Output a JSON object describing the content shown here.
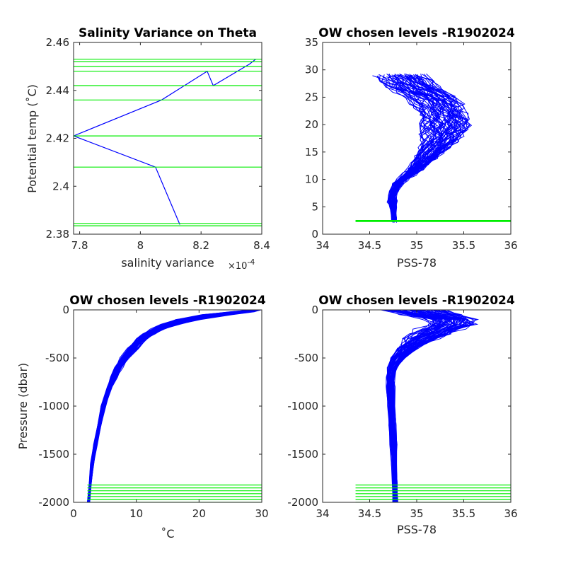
{
  "chart_data": [
    {
      "id": "ax1",
      "type": "line",
      "title": "Salinity Variance on Theta",
      "xlabel": "salinity variance",
      "ylabel": "Potential temp (˚C)",
      "x_exponent": "×10",
      "x_exponent_power": "-4",
      "xlim": [
        7.78,
        8.4
      ],
      "ylim": [
        2.38,
        2.46
      ],
      "xticks": [
        7.8,
        8,
        8.2,
        8.4
      ],
      "xtick_labels": [
        "7.8",
        "8",
        "8.2",
        "8.4"
      ],
      "yticks": [
        2.38,
        2.4,
        2.42,
        2.44,
        2.46
      ],
      "ytick_labels": [
        "2.38",
        "2.4",
        "2.42",
        "2.44",
        "2.46"
      ],
      "grid": false,
      "series": [
        {
          "color": "#0000ff",
          "x": [
            8.38,
            8.36,
            8.24,
            8.22,
            8.07,
            7.78,
            8.05,
            8.13
          ],
          "y": [
            2.453,
            2.451,
            2.442,
            2.448,
            2.436,
            2.421,
            2.408,
            2.384
          ]
        }
      ],
      "hlines": {
        "color": "#00ee00",
        "y": [
          2.453,
          2.452,
          2.45,
          2.448,
          2.442,
          2.436,
          2.421,
          2.408,
          2.3845,
          2.3835
        ]
      }
    },
    {
      "id": "ax2",
      "type": "line",
      "title": "OW chosen levels -R1902024",
      "xlabel": "PSS-78",
      "ylabel": "",
      "xlim": [
        34,
        36
      ],
      "ylim": [
        0,
        35
      ],
      "xticks": [
        34,
        34.5,
        35,
        35.5,
        36
      ],
      "xtick_labels": [
        "34",
        "34.5",
        "35",
        "35.5",
        "36"
      ],
      "yticks": [
        0,
        5,
        10,
        15,
        20,
        25,
        30,
        35
      ],
      "ytick_labels": [
        "0",
        "5",
        "10",
        "15",
        "20",
        "25",
        "30",
        "35"
      ],
      "grid": false,
      "series_color": "#0000ff",
      "profile": {
        "t": [
          2.4,
          3,
          4,
          5,
          6,
          7,
          8,
          9,
          10,
          11,
          12,
          13,
          14,
          15,
          16,
          17,
          18,
          19,
          20,
          21,
          22,
          23,
          24,
          25,
          26,
          27,
          28,
          29
        ],
        "s": [
          34.76,
          34.76,
          34.75,
          34.75,
          34.74,
          34.74,
          34.76,
          34.79,
          34.85,
          34.92,
          34.99,
          35.05,
          35.1,
          35.15,
          35.2,
          35.24,
          35.27,
          35.29,
          35.3,
          35.29,
          35.27,
          35.24,
          35.2,
          35.15,
          35.05,
          34.95,
          34.88,
          34.82
        ],
        "half_width": [
          0.03,
          0.03,
          0.03,
          0.04,
          0.06,
          0.05,
          0.05,
          0.05,
          0.06,
          0.08,
          0.1,
          0.12,
          0.15,
          0.17,
          0.2,
          0.23,
          0.25,
          0.28,
          0.3,
          0.3,
          0.3,
          0.3,
          0.3,
          0.3,
          0.3,
          0.32,
          0.33,
          0.3
        ],
        "n_profiles": 60
      },
      "hlines": {
        "color": "#00ee00",
        "y": [
          2.3,
          2.4,
          2.5
        ],
        "x_from": 34.35,
        "x_to": 36
      }
    },
    {
      "id": "ax3",
      "type": "line",
      "title": "OW chosen levels -R1902024",
      "xlabel": "˚C",
      "ylabel": "Pressure (dbar)",
      "xlim": [
        0,
        30
      ],
      "ylim": [
        -2000,
        0
      ],
      "xticks": [
        0,
        10,
        20,
        30
      ],
      "xtick_labels": [
        "0",
        "10",
        "20",
        "30"
      ],
      "yticks": [
        -2000,
        -1500,
        -1000,
        -500,
        0
      ],
      "ytick_labels": [
        "-2000",
        "-1500",
        "-1000",
        "-500",
        "0"
      ],
      "grid": false,
      "series_color": "#0000ff",
      "profile": {
        "p": [
          0,
          -20,
          -50,
          -100,
          -150,
          -200,
          -250,
          -300,
          -400,
          -500,
          -600,
          -700,
          -800,
          -1000,
          -1200,
          -1400,
          -1600,
          -1800,
          -2000
        ],
        "t": [
          29,
          27,
          23,
          18.5,
          15.5,
          13.5,
          12,
          11,
          9.5,
          8.2,
          7.2,
          6.4,
          5.8,
          4.8,
          4.1,
          3.5,
          3.0,
          2.7,
          2.4
        ],
        "half_width": [
          1,
          2,
          2.5,
          2,
          1.6,
          1.3,
          1.1,
          1,
          0.9,
          0.8,
          0.7,
          0.6,
          0.5,
          0.4,
          0.3,
          0.3,
          0.3,
          0.2,
          0.2
        ],
        "n_profiles": 60
      },
      "hlines": {
        "color": "#00ee00",
        "y": [
          -1820,
          -1850,
          -1880,
          -1910,
          -1940,
          -1970,
          -2000
        ],
        "x_from": 2.2,
        "x_to": 30
      }
    },
    {
      "id": "ax4",
      "type": "line",
      "title": "OW chosen levels -R1902024",
      "xlabel": "PSS-78",
      "ylabel": "",
      "xlim": [
        34,
        36
      ],
      "ylim": [
        -2000,
        0
      ],
      "xticks": [
        34,
        34.5,
        35,
        35.5,
        36
      ],
      "xtick_labels": [
        "34",
        "34.5",
        "35",
        "35.5",
        "36"
      ],
      "yticks": [
        -2000,
        -1500,
        -1000,
        -500,
        0
      ],
      "ytick_labels": [
        "-2000",
        "-1500",
        "-1000",
        "-500",
        "0"
      ],
      "grid": false,
      "series_color": "#0000ff",
      "profile": {
        "p": [
          0,
          -50,
          -100,
          -150,
          -200,
          -250,
          -300,
          -350,
          -400,
          -500,
          -600,
          -700,
          -800,
          -1000,
          -1200,
          -1400,
          -1600,
          -1800,
          -2000
        ],
        "s": [
          34.95,
          35.15,
          35.35,
          35.35,
          35.25,
          35.15,
          35.05,
          34.97,
          34.9,
          34.8,
          34.74,
          34.72,
          34.72,
          34.73,
          34.74,
          34.75,
          34.76,
          34.77,
          34.77
        ],
        "half_width": [
          0.4,
          0.35,
          0.3,
          0.3,
          0.28,
          0.25,
          0.2,
          0.15,
          0.12,
          0.08,
          0.06,
          0.05,
          0.05,
          0.04,
          0.04,
          0.04,
          0.03,
          0.03,
          0.03
        ],
        "n_profiles": 60
      },
      "hlines": {
        "color": "#00ee00",
        "y": [
          -1820,
          -1850,
          -1880,
          -1910,
          -1940,
          -1970,
          -2000
        ],
        "x_from": 34.35,
        "x_to": 36
      }
    }
  ]
}
